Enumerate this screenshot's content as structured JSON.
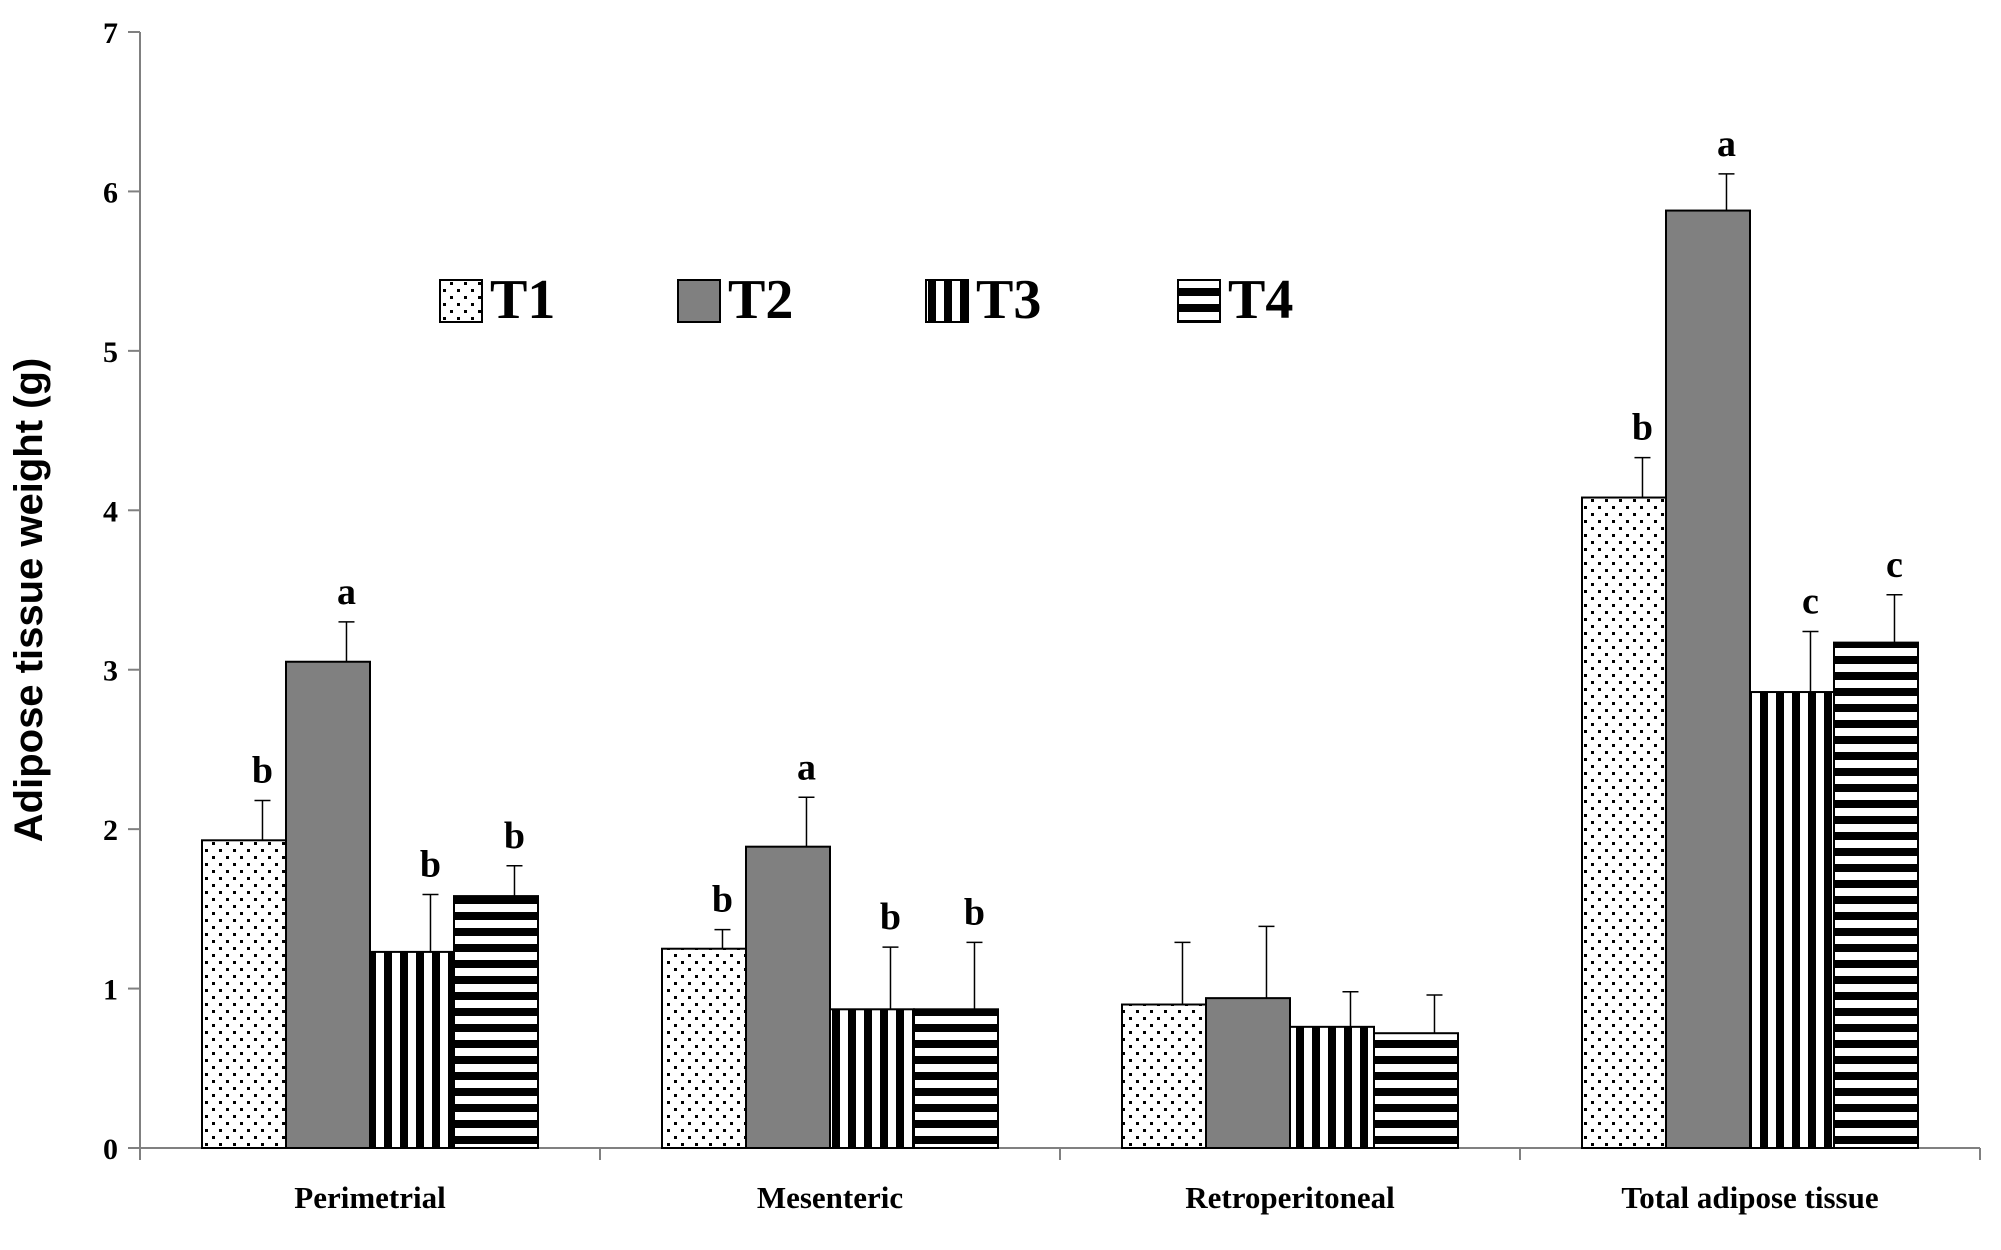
{
  "chart_data": {
    "type": "bar",
    "title": "",
    "xlabel": "",
    "ylabel": "Adipose tissue weight (g)",
    "ylim": [
      0,
      7
    ],
    "yticks": [
      0,
      1,
      2,
      3,
      4,
      5,
      6,
      7
    ],
    "grid": false,
    "legend_position": "top-left",
    "categories": [
      "Perimetrial",
      "Mesenteric",
      "Retroperitoneal",
      "Total adipose tissue"
    ],
    "series": [
      {
        "name": "T1",
        "pattern": "dots",
        "values": [
          1.93,
          1.25,
          0.9,
          4.08
        ],
        "errors": [
          0.25,
          0.12,
          0.39,
          0.25
        ],
        "letters": [
          "b",
          "b",
          "",
          "b"
        ]
      },
      {
        "name": "T2",
        "pattern": "solid-gray",
        "values": [
          3.05,
          1.89,
          0.94,
          5.88
        ],
        "errors": [
          0.25,
          0.31,
          0.45,
          0.23
        ],
        "letters": [
          "a",
          "a",
          "",
          "a"
        ]
      },
      {
        "name": "T3",
        "pattern": "vertical-stripes",
        "values": [
          1.23,
          0.87,
          0.76,
          2.86
        ],
        "errors": [
          0.36,
          0.39,
          0.22,
          0.38
        ],
        "letters": [
          "b",
          "b",
          "",
          "c"
        ]
      },
      {
        "name": "T4",
        "pattern": "horizontal-stripes",
        "values": [
          1.58,
          0.87,
          0.72,
          3.17
        ],
        "errors": [
          0.19,
          0.42,
          0.24,
          0.3
        ],
        "letters": [
          "b",
          "b",
          "",
          "c"
        ]
      }
    ],
    "colors": {
      "gray": "#808080",
      "stroke": "#000000",
      "axis": "#808080"
    }
  }
}
